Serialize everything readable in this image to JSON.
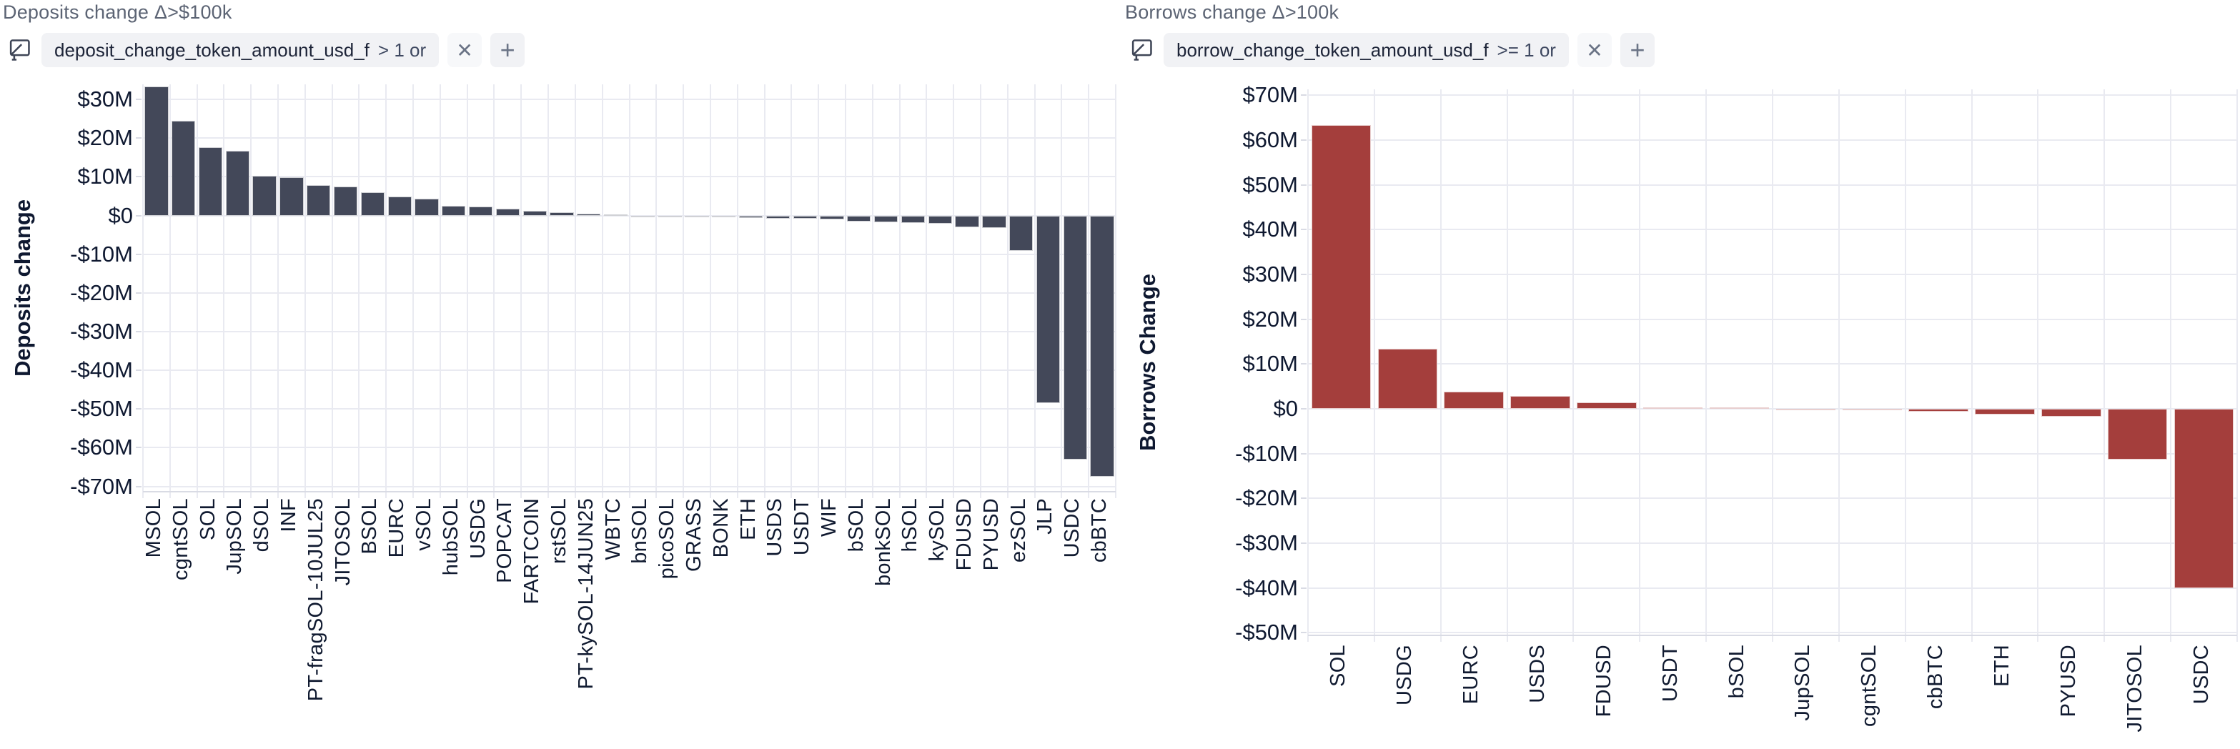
{
  "panels": [
    {
      "title": "Deposits change Δ>$100k",
      "filter": {
        "field": "deposit_change_token_amount_usd_f",
        "condition": "> 1 or",
        "remove_label": "✕",
        "add_label": "+"
      }
    },
    {
      "title": "Borrows change Δ>100k",
      "filter": {
        "field": "borrow_change_token_amount_usd_f",
        "condition": ">= 1 or",
        "remove_label": "✕",
        "add_label": "+"
      }
    }
  ],
  "chart_data": [
    {
      "type": "bar",
      "title": "Deposits change Δ>$100k",
      "xlabel": "",
      "ylabel": "Deposits change",
      "bar_color": "#434859",
      "grid": true,
      "ylim": [
        -71.2,
        33.9
      ],
      "yticks": [
        30,
        20,
        10,
        0,
        -10,
        -20,
        -30,
        -40,
        -50,
        -60,
        -70
      ],
      "ytick_format": "$_M",
      "categories": [
        "MSOL",
        "cgntSOL",
        "SOL",
        "JupSOL",
        "dSOL",
        "INF",
        "PT-fragSOL-10JUL25",
        "JITOSOL",
        "BSOL",
        "EURC",
        "vSOL",
        "hubSOL",
        "USDG",
        "POPCAT",
        "FARTCOIN",
        "rstSOL",
        "PT-kySOL-14JUN25",
        "WBTC",
        "bnSOL",
        "picoSOL",
        "GRASS",
        "BONK",
        "ETH",
        "USDS",
        "USDT",
        "WIF",
        "bSOL",
        "bonkSOL",
        "hSOL",
        "kySOL",
        "FDUSD",
        "PYUSD",
        "ezSOL",
        "JLP",
        "USDC",
        "cbBTC"
      ],
      "values": [
        33.4,
        24.5,
        17.6,
        16.7,
        10.2,
        9.8,
        7.8,
        7.5,
        6.1,
        4.9,
        4.4,
        2.5,
        2.3,
        1.7,
        1.2,
        0.8,
        0.5,
        0.3,
        -0.1,
        -0.3,
        -0.45,
        -0.55,
        -0.65,
        -0.8,
        -0.9,
        -1.0,
        -1.5,
        -1.7,
        -2.0,
        -2.2,
        -3.0,
        -3.2,
        -9.1,
        -48.4,
        -63.0,
        -67.6
      ]
    },
    {
      "type": "bar",
      "title": "Borrows change Δ>100k",
      "xlabel": "",
      "ylabel": "Borrows Change",
      "bar_color": "#a43e3c",
      "grid": true,
      "ylim": [
        -50.4,
        71.3
      ],
      "yticks": [
        70,
        60,
        50,
        40,
        30,
        20,
        10,
        0,
        -10,
        -20,
        -30,
        -40,
        -50
      ],
      "ytick_format": "$_M",
      "categories": [
        "SOL",
        "USDG",
        "EURC",
        "USDS",
        "FDUSD",
        "USDT",
        "bSOL",
        "JupSOL",
        "cgntSOL",
        "cbBTC",
        "ETH",
        "PYUSD",
        "JITOSOL",
        "USDC"
      ],
      "values": [
        63.3,
        13.4,
        3.8,
        2.8,
        1.5,
        0.3,
        0.15,
        -0.1,
        -0.25,
        -0.7,
        -1.3,
        -1.8,
        -11.3,
        -40.0
      ]
    }
  ]
}
